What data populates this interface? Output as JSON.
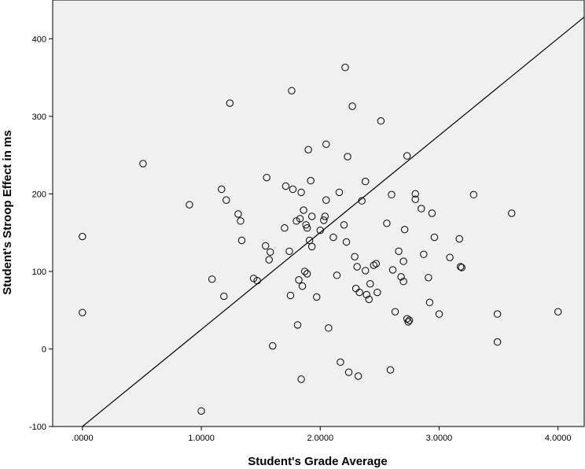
{
  "chart_data": {
    "type": "scatter",
    "xlabel": "Student's Grade Average",
    "ylabel": "Student's Stroop Effect in ms",
    "xlim": [
      -0.25,
      4.22
    ],
    "ylim": [
      -100,
      450
    ],
    "x_ticks": [
      0,
      1,
      2,
      3,
      4
    ],
    "x_tick_labels": [
      ".0000",
      "1.0000",
      "2.0000",
      "3.0000",
      "4.0000"
    ],
    "y_ticks": [
      -100,
      0,
      100,
      200,
      300,
      400
    ],
    "y_tick_labels": [
      "-100",
      "0",
      "100",
      "200",
      "300",
      "400"
    ],
    "grid": false,
    "plot_background": "#f0f0f0",
    "marker_color": "#000000",
    "fit_line": {
      "x1": 0.0,
      "y1": -100,
      "x2": 4.22,
      "y2": 428
    },
    "points": [
      {
        "x": 0.0,
        "y": 145
      },
      {
        "x": 0.0,
        "y": 47
      },
      {
        "x": 0.51,
        "y": 239
      },
      {
        "x": 0.9,
        "y": 186
      },
      {
        "x": 1.0,
        "y": -80
      },
      {
        "x": 1.09,
        "y": 90
      },
      {
        "x": 1.17,
        "y": 206
      },
      {
        "x": 1.19,
        "y": 68
      },
      {
        "x": 1.21,
        "y": 192
      },
      {
        "x": 1.24,
        "y": 317
      },
      {
        "x": 1.31,
        "y": 174
      },
      {
        "x": 1.33,
        "y": 165
      },
      {
        "x": 1.34,
        "y": 140
      },
      {
        "x": 1.44,
        "y": 91
      },
      {
        "x": 1.47,
        "y": 88
      },
      {
        "x": 1.54,
        "y": 133
      },
      {
        "x": 1.55,
        "y": 221
      },
      {
        "x": 1.57,
        "y": 115
      },
      {
        "x": 1.58,
        "y": 125
      },
      {
        "x": 1.6,
        "y": 4
      },
      {
        "x": 1.7,
        "y": 156
      },
      {
        "x": 1.71,
        "y": 210
      },
      {
        "x": 1.74,
        "y": 126
      },
      {
        "x": 1.75,
        "y": 69
      },
      {
        "x": 1.76,
        "y": 333
      },
      {
        "x": 1.77,
        "y": 206
      },
      {
        "x": 1.8,
        "y": 165
      },
      {
        "x": 1.81,
        "y": 31
      },
      {
        "x": 1.82,
        "y": 89
      },
      {
        "x": 1.83,
        "y": 168
      },
      {
        "x": 1.84,
        "y": -39
      },
      {
        "x": 1.84,
        "y": 202
      },
      {
        "x": 1.85,
        "y": 81
      },
      {
        "x": 1.86,
        "y": 179
      },
      {
        "x": 1.87,
        "y": 100
      },
      {
        "x": 1.88,
        "y": 160
      },
      {
        "x": 1.89,
        "y": 97
      },
      {
        "x": 1.89,
        "y": 156
      },
      {
        "x": 1.9,
        "y": 257
      },
      {
        "x": 1.91,
        "y": 140
      },
      {
        "x": 1.92,
        "y": 217
      },
      {
        "x": 1.93,
        "y": 132
      },
      {
        "x": 1.93,
        "y": 171
      },
      {
        "x": 1.97,
        "y": 67
      },
      {
        "x": 2.0,
        "y": 153
      },
      {
        "x": 2.03,
        "y": 166
      },
      {
        "x": 2.04,
        "y": 171
      },
      {
        "x": 2.05,
        "y": 264
      },
      {
        "x": 2.05,
        "y": 192
      },
      {
        "x": 2.07,
        "y": 27
      },
      {
        "x": 2.11,
        "y": 144
      },
      {
        "x": 2.14,
        "y": 95
      },
      {
        "x": 2.16,
        "y": 202
      },
      {
        "x": 2.17,
        "y": -17
      },
      {
        "x": 2.2,
        "y": 160
      },
      {
        "x": 2.21,
        "y": 363
      },
      {
        "x": 2.22,
        "y": 138
      },
      {
        "x": 2.23,
        "y": 248
      },
      {
        "x": 2.24,
        "y": -30
      },
      {
        "x": 2.27,
        "y": 313
      },
      {
        "x": 2.29,
        "y": 119
      },
      {
        "x": 2.3,
        "y": 78
      },
      {
        "x": 2.31,
        "y": 106
      },
      {
        "x": 2.32,
        "y": -35
      },
      {
        "x": 2.33,
        "y": 73
      },
      {
        "x": 2.35,
        "y": 191
      },
      {
        "x": 2.38,
        "y": 216
      },
      {
        "x": 2.38,
        "y": 101
      },
      {
        "x": 2.39,
        "y": 70
      },
      {
        "x": 2.41,
        "y": 64
      },
      {
        "x": 2.42,
        "y": 84
      },
      {
        "x": 2.45,
        "y": 108
      },
      {
        "x": 2.47,
        "y": 110
      },
      {
        "x": 2.48,
        "y": 73
      },
      {
        "x": 2.51,
        "y": 294
      },
      {
        "x": 2.56,
        "y": 162
      },
      {
        "x": 2.59,
        "y": -27
      },
      {
        "x": 2.6,
        "y": 199
      },
      {
        "x": 2.61,
        "y": 102
      },
      {
        "x": 2.63,
        "y": 48
      },
      {
        "x": 2.66,
        "y": 126
      },
      {
        "x": 2.68,
        "y": 93
      },
      {
        "x": 2.7,
        "y": 113
      },
      {
        "x": 2.7,
        "y": 87
      },
      {
        "x": 2.71,
        "y": 154
      },
      {
        "x": 2.73,
        "y": 249
      },
      {
        "x": 2.73,
        "y": 39
      },
      {
        "x": 2.74,
        "y": 35
      },
      {
        "x": 2.75,
        "y": 37
      },
      {
        "x": 2.8,
        "y": 200
      },
      {
        "x": 2.8,
        "y": 193
      },
      {
        "x": 2.85,
        "y": 181
      },
      {
        "x": 2.87,
        "y": 122
      },
      {
        "x": 2.91,
        "y": 92
      },
      {
        "x": 2.92,
        "y": 60
      },
      {
        "x": 2.94,
        "y": 175
      },
      {
        "x": 2.96,
        "y": 144
      },
      {
        "x": 3.0,
        "y": 45
      },
      {
        "x": 3.09,
        "y": 118
      },
      {
        "x": 3.17,
        "y": 142
      },
      {
        "x": 3.18,
        "y": 106
      },
      {
        "x": 3.19,
        "y": 105
      },
      {
        "x": 3.29,
        "y": 199
      },
      {
        "x": 3.49,
        "y": 45
      },
      {
        "x": 3.49,
        "y": 9
      },
      {
        "x": 3.61,
        "y": 175
      },
      {
        "x": 4.0,
        "y": 48
      }
    ]
  }
}
